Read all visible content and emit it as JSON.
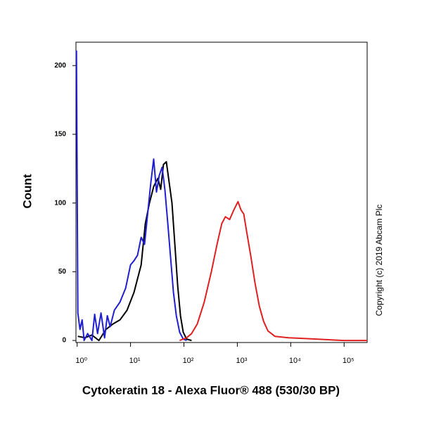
{
  "chart_data": {
    "type": "line",
    "xlabel": "Cytokeratin 18 - Alexa Fluor® 488 (530/30 BP)",
    "ylabel": "Count",
    "annotation": "Copyright (c) 2019 Abcam Plc",
    "xscale": "log",
    "xlim": [
      0.95,
      270000
    ],
    "ylim": [
      -1.5,
      217
    ],
    "xticks": [
      {
        "value": 1,
        "label": "10⁰"
      },
      {
        "value": 10,
        "label": "10¹"
      },
      {
        "value": 100,
        "label": "10²"
      },
      {
        "value": 1000,
        "label": "10³"
      },
      {
        "value": 10000,
        "label": "10⁴"
      },
      {
        "value": 100000,
        "label": "10⁵"
      }
    ],
    "yticks": [
      0,
      50,
      100,
      150,
      200
    ],
    "series": [
      {
        "color": "#000000",
        "x": [
          1.03,
          1.4,
          1.89,
          2.55,
          3.46,
          4.68,
          6.35,
          8.6,
          11.6,
          15.8,
          18.9,
          22.6,
          27.1,
          32.5,
          36.7,
          41.4,
          46.8,
          52.8,
          59.7,
          67.5,
          76.3,
          86.1,
          97,
          112,
          139
        ],
        "values": [
          3,
          2,
          4,
          0,
          8,
          12,
          15,
          22,
          35,
          55,
          85,
          100,
          112,
          118,
          110,
          128,
          130,
          115,
          100,
          70,
          40,
          18,
          6,
          1,
          0
        ]
      },
      {
        "color": "#1f1fd0",
        "x": [
          0.97,
          1.03,
          1.13,
          1.24,
          1.35,
          1.57,
          1.89,
          2.13,
          2.41,
          2.8,
          3.26,
          3.68,
          4.15,
          4.98,
          6.35,
          8.09,
          10,
          11.6,
          13.5,
          15.8,
          18.3,
          21.3,
          24,
          27.1,
          30.6,
          34.5,
          39,
          44,
          49.9,
          56.3,
          63.7,
          72,
          83,
          96.9,
          112
        ],
        "values": [
          211,
          20,
          8,
          15,
          0,
          5,
          0,
          19,
          5,
          20,
          2,
          18,
          10,
          22,
          28,
          38,
          55,
          58,
          62,
          75,
          70,
          95,
          115,
          132,
          108,
          120,
          126,
          110,
          85,
          60,
          35,
          18,
          6,
          1,
          0
        ]
      },
      {
        "color": "#e02020",
        "x": [
          83,
          112,
          139,
          178,
          240,
          326,
          417,
          511,
          598,
          718,
          862,
          1030,
          1170,
          1320,
          1480,
          1780,
          2140,
          2580,
          3100,
          3740,
          5070,
          9150,
          16500,
          29800,
          53800,
          97000,
          270000
        ],
        "values": [
          0,
          2,
          5,
          12,
          28,
          50,
          70,
          85,
          90,
          88,
          95,
          101,
          95,
          92,
          80,
          62,
          42,
          25,
          14,
          7,
          3,
          2,
          1.5,
          1,
          0.5,
          0,
          0
        ]
      }
    ]
  }
}
